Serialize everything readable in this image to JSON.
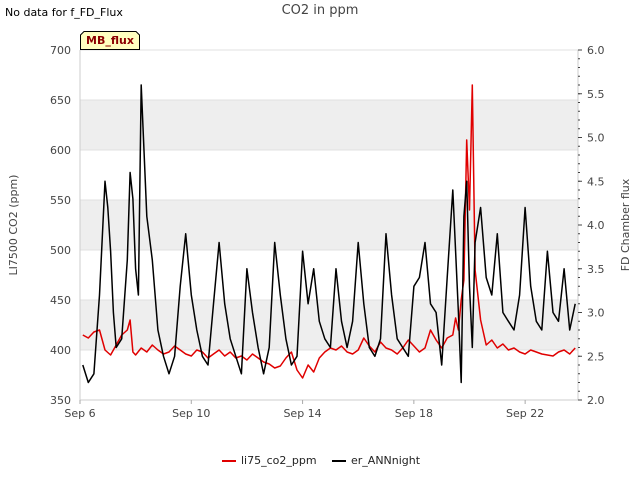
{
  "header": {
    "no_data_note": "No data for f_FD_Flux",
    "site_badge": "MB_flux"
  },
  "colors": {
    "band": "#eeeeee",
    "li75": "#e00000",
    "er": "#000000",
    "axis": "#cccccc",
    "badge_fill": "#ffffc0"
  },
  "chart_data": {
    "type": "line",
    "title": "CO2 in ppm",
    "ylabel": "LI7500 CO2 (ppm)",
    "y2label": "FD Chamber flux",
    "xlim": [
      6.0,
      23.9
    ],
    "ylim": [
      350,
      700
    ],
    "y2lim": [
      2.0,
      6.0
    ],
    "xticks": [
      {
        "value": 6,
        "label": "Sep 6"
      },
      {
        "value": 10,
        "label": "Sep 10"
      },
      {
        "value": 14,
        "label": "Sep 14"
      },
      {
        "value": 18,
        "label": "Sep 18"
      },
      {
        "value": 22,
        "label": "Sep 22"
      }
    ],
    "yticks": [
      350,
      400,
      450,
      500,
      550,
      600,
      650,
      700
    ],
    "y2ticks": [
      "2.0",
      "2.5",
      "3.0",
      "3.5",
      "4.0",
      "4.5",
      "5.0",
      "5.5",
      "6.0"
    ],
    "bands": [
      [
        400,
        450
      ],
      [
        500,
        550
      ],
      [
        600,
        650
      ]
    ],
    "legend": [
      "li75_co2_ppm",
      "er_ANNnight"
    ],
    "series": [
      {
        "name": "li75_co2_ppm",
        "axis": "left",
        "x": [
          6.1,
          6.3,
          6.5,
          6.7,
          6.9,
          7.1,
          7.3,
          7.5,
          7.7,
          7.8,
          7.9,
          8.0,
          8.2,
          8.4,
          8.6,
          8.8,
          9.0,
          9.2,
          9.4,
          9.6,
          9.8,
          10.0,
          10.2,
          10.4,
          10.6,
          10.8,
          11.0,
          11.2,
          11.4,
          11.6,
          11.8,
          12.0,
          12.2,
          12.4,
          12.6,
          12.8,
          13.0,
          13.2,
          13.4,
          13.6,
          13.8,
          14.0,
          14.2,
          14.4,
          14.6,
          14.8,
          15.0,
          15.2,
          15.4,
          15.6,
          15.8,
          16.0,
          16.2,
          16.4,
          16.6,
          16.8,
          17.0,
          17.2,
          17.4,
          17.6,
          17.8,
          18.0,
          18.2,
          18.4,
          18.6,
          18.8,
          19.0,
          19.2,
          19.4,
          19.5,
          19.6,
          19.7,
          19.8,
          19.9,
          20.0,
          20.1,
          20.2,
          20.4,
          20.6,
          20.8,
          21.0,
          21.2,
          21.4,
          21.6,
          21.8,
          22.0,
          22.2,
          22.4,
          22.6,
          22.8,
          23.0,
          23.2,
          23.4,
          23.6,
          23.8
        ],
        "values": [
          415,
          412,
          418,
          420,
          400,
          395,
          405,
          415,
          420,
          430,
          398,
          395,
          402,
          398,
          405,
          400,
          396,
          398,
          404,
          400,
          396,
          394,
          400,
          398,
          392,
          396,
          400,
          394,
          398,
          392,
          394,
          390,
          396,
          392,
          388,
          386,
          382,
          384,
          392,
          398,
          380,
          372,
          385,
          378,
          392,
          398,
          402,
          400,
          404,
          398,
          396,
          400,
          412,
          404,
          398,
          408,
          402,
          400,
          396,
          402,
          410,
          404,
          398,
          402,
          420,
          410,
          402,
          412,
          415,
          432,
          420,
          450,
          470,
          610,
          540,
          665,
          480,
          430,
          405,
          410,
          402,
          406,
          400,
          402,
          398,
          396,
          400,
          398,
          396,
          395,
          394,
          398,
          400,
          396,
          402
        ]
      },
      {
        "name": "er_ANNnight",
        "axis": "right",
        "x": [
          6.1,
          6.3,
          6.5,
          6.7,
          6.9,
          7.0,
          7.1,
          7.2,
          7.3,
          7.5,
          7.7,
          7.8,
          7.9,
          8.0,
          8.1,
          8.2,
          8.4,
          8.6,
          8.8,
          9.0,
          9.2,
          9.4,
          9.6,
          9.8,
          10.0,
          10.2,
          10.4,
          10.6,
          10.8,
          11.0,
          11.2,
          11.4,
          11.6,
          11.8,
          12.0,
          12.2,
          12.4,
          12.6,
          12.8,
          13.0,
          13.2,
          13.4,
          13.6,
          13.8,
          14.0,
          14.2,
          14.4,
          14.6,
          14.8,
          15.0,
          15.2,
          15.4,
          15.6,
          15.8,
          16.0,
          16.2,
          16.4,
          16.6,
          16.8,
          17.0,
          17.2,
          17.4,
          17.6,
          17.8,
          18.0,
          18.2,
          18.4,
          18.6,
          18.8,
          19.0,
          19.2,
          19.4,
          19.6,
          19.7,
          19.8,
          19.9,
          20.0,
          20.1,
          20.2,
          20.4,
          20.6,
          20.8,
          21.0,
          21.2,
          21.4,
          21.6,
          21.8,
          22.0,
          22.2,
          22.4,
          22.6,
          22.8,
          23.0,
          23.2,
          23.4,
          23.6,
          23.8
        ],
        "values": [
          2.4,
          2.2,
          2.3,
          3.2,
          4.5,
          4.2,
          3.7,
          3.0,
          2.6,
          2.7,
          3.6,
          4.6,
          4.3,
          3.5,
          3.2,
          5.6,
          4.1,
          3.6,
          2.8,
          2.5,
          2.3,
          2.5,
          3.3,
          3.9,
          3.2,
          2.8,
          2.5,
          2.4,
          3.1,
          3.8,
          3.1,
          2.7,
          2.5,
          2.3,
          3.5,
          3.0,
          2.6,
          2.3,
          2.6,
          3.8,
          3.2,
          2.7,
          2.4,
          2.5,
          3.7,
          3.1,
          3.5,
          2.9,
          2.7,
          2.6,
          3.5,
          2.9,
          2.6,
          2.9,
          3.8,
          3.1,
          2.6,
          2.5,
          2.7,
          3.9,
          3.2,
          2.7,
          2.6,
          2.5,
          3.3,
          3.4,
          3.8,
          3.1,
          3.0,
          2.4,
          3.4,
          4.4,
          3.0,
          2.2,
          4.1,
          4.5,
          3.3,
          2.6,
          3.8,
          4.2,
          3.4,
          3.2,
          3.9,
          3.0,
          2.9,
          2.8,
          3.2,
          4.2,
          3.3,
          2.9,
          2.8,
          3.7,
          3.0,
          2.9,
          3.5,
          2.8,
          3.1
        ]
      }
    ]
  }
}
